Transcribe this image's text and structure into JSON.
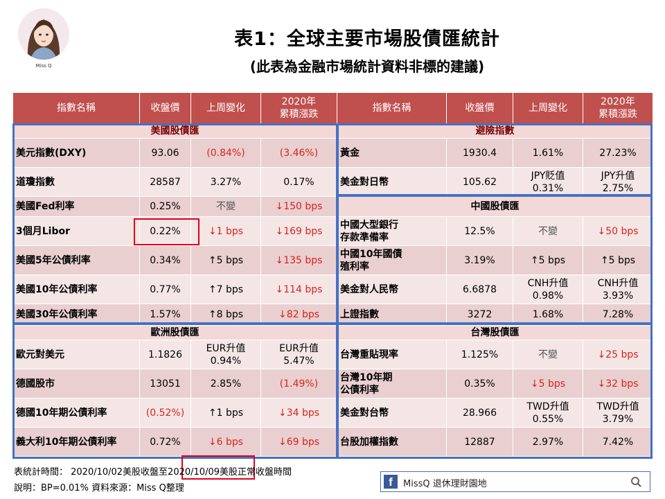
{
  "header": {
    "avatar_caption": "Miss Q",
    "title": "表1：全球主要市場股債匯統計",
    "subtitle": "(此表為金融市場統計資料非標的建議)"
  },
  "columns": {
    "left": [
      "指數名稱",
      "收盤價",
      "上周變化",
      "2020年",
      "累積漲跌"
    ],
    "right": [
      "指數名稱",
      "收盤價",
      "上周變化",
      "2020年",
      "累積漲跌"
    ]
  },
  "sections": {
    "us": "美國股債匯",
    "hedge": "避險指數",
    "china": "中國股債匯",
    "europe": "歐洲股債匯",
    "taiwan": "台灣股債匯"
  },
  "left_rows": [
    {
      "name": "美元指數(DXY)",
      "close": "93.06",
      "week": "(0.84%)",
      "ytd": "(3.46%)"
    },
    {
      "name": "道瓊指數",
      "close": "28587",
      "week": "3.27%",
      "ytd": "0.17%"
    },
    {
      "name": "美國Fed利率",
      "close": "0.25%",
      "week": "不變",
      "ytd": "↓150 bps"
    },
    {
      "name": "3個月Libor",
      "close": "0.22%",
      "week": "↓1 bps",
      "ytd": "↓169 bps"
    },
    {
      "name": "美國5年公債利率",
      "close": "0.34%",
      "week": "↑5 bps",
      "ytd": "↓135 bps"
    },
    {
      "name": "美國10年公債利率",
      "close": "0.77%",
      "week": "↑7 bps",
      "ytd": "↓114 bps"
    },
    {
      "name": "美國30年公債利率",
      "close": "1.57%",
      "week": "↑8 bps",
      "ytd": "↓82 bps"
    },
    {
      "name": "歐元對美元",
      "close": "1.1826",
      "week_1": "EUR升值",
      "week_2": "0.94%",
      "ytd_1": "EUR升值",
      "ytd_2": "5.47%"
    },
    {
      "name": "德國股市",
      "close": "13051",
      "week": "2.85%",
      "ytd": "(1.49%)"
    },
    {
      "name": "德國10年期公債利率",
      "close": "(0.52%)",
      "week": "↑1 bps",
      "ytd": "↓34 bps"
    },
    {
      "name": "義大利10年期公債利率",
      "close": "0.72%",
      "week": "↓6 bps",
      "ytd": "↓69 bps"
    }
  ],
  "right_rows": [
    {
      "name": "黃金",
      "close": "1930.4",
      "week": "1.61%",
      "ytd": "27.23%"
    },
    {
      "name": "美金對日幣",
      "close": "105.62",
      "week_1": "JPY貶值",
      "week_2": "0.31%",
      "ytd_1": "JPY升值",
      "ytd_2": "2.75%"
    },
    {
      "name_1": "中國大型銀行",
      "name_2": "存款準備率",
      "close": "12.5%",
      "week": "不變",
      "ytd": "↓50 bps"
    },
    {
      "name_1": "中國10年國債",
      "name_2": "殖利率",
      "close": "3.19%",
      "week": "↑5 bps",
      "ytd": "↑5 bps"
    },
    {
      "name": "美金對人民幣",
      "close": "6.6878",
      "week_1": "CNH升值",
      "week_2": "0.98%",
      "ytd_1": "CNH升值",
      "ytd_2": "3.93%"
    },
    {
      "name": "上證指數",
      "close": "3272",
      "week": "1.68%",
      "ytd": "7.28%"
    },
    {
      "name": "台灣重貼現率",
      "close": "1.125%",
      "week": "不變",
      "ytd": "↓25 bps"
    },
    {
      "name_1": "台灣10年期",
      "name_2": "公債利率",
      "close": "0.35%",
      "week": "↓5 bps",
      "ytd": "↓32 bps"
    },
    {
      "name": "美金對台幣",
      "close": "28.966",
      "week_1": "TWD升值",
      "week_2": "0.55%",
      "ytd_1": "TWD升值",
      "ytd_2": "3.79%"
    },
    {
      "name": "台股加權指數",
      "close": "12887",
      "week": "2.97%",
      "ytd": "7.42%"
    }
  ],
  "footer": {
    "stat_time": "表統計時間： 2020/10/02美股收盤至2020/10/09美股正常收盤時間",
    "note": "說明：BP=0.01% 資料來源：Miss Q整理"
  },
  "facebook": {
    "logo": "f",
    "page_name": "MissQ 退休理財園地"
  },
  "colors": {
    "header_bg": "#c0504d",
    "row_bg": "#e9cfcf",
    "negative_text": "#d9231d",
    "section_box": "#4472c4",
    "highlight_box": "#e0001b"
  },
  "icons": {
    "search": "search-icon",
    "facebook": "facebook-logo-icon"
  }
}
